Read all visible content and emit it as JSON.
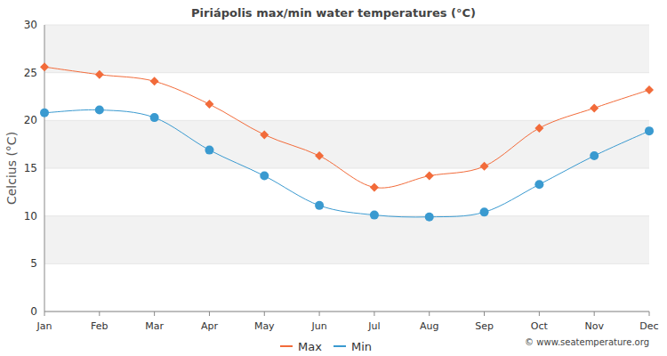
{
  "chart_data": {
    "type": "line",
    "title": "Piriápolis max/min water temperatures (°C)",
    "y_label": "Celcius (°C)",
    "annotations": [
      "© www.seatemperature.org"
    ],
    "categories": [
      "Jan",
      "Feb",
      "Mar",
      "Apr",
      "May",
      "Jun",
      "Jul",
      "Aug",
      "Sep",
      "Oct",
      "Nov",
      "Dec"
    ],
    "series": [
      {
        "name": "Max",
        "color": "#f26b3a",
        "marker": "diamond",
        "values": [
          25.6,
          24.8,
          24.1,
          21.7,
          18.5,
          16.3,
          13.0,
          14.2,
          15.2,
          19.2,
          21.3,
          23.2
        ]
      },
      {
        "name": "Min",
        "color": "#3a9ad0",
        "marker": "circle",
        "values": [
          20.8,
          21.1,
          20.3,
          16.9,
          14.2,
          11.1,
          10.1,
          9.9,
          10.4,
          13.3,
          16.3,
          18.9
        ]
      }
    ],
    "ylim": [
      0,
      30
    ],
    "yticks": [
      0,
      5,
      10,
      15,
      20,
      25,
      30
    ],
    "grid": true,
    "legend": "bottom"
  }
}
